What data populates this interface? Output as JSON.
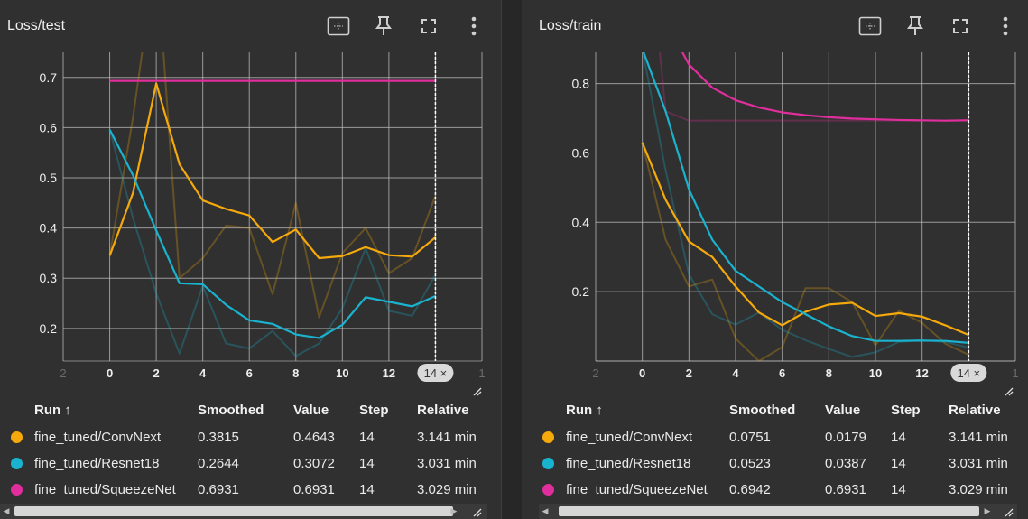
{
  "colors": {
    "convnext": "#f5a90b",
    "resnet18": "#1ab3cf",
    "squeezenet": "#e02e9c",
    "grid": "#bdbdbd",
    "axis_text": "#f0f0f0"
  },
  "table_headers": {
    "run": "Run ↑",
    "smoothed": "Smoothed",
    "value": "Value",
    "step": "Step",
    "relative": "Relative"
  },
  "toolbar_icons": [
    "fit-domain-icon",
    "pin-icon",
    "fullscreen-icon",
    "more-vert-icon"
  ],
  "chart_data": [
    {
      "type": "line",
      "title": "Loss/test",
      "xlim": [
        -2,
        16
      ],
      "ylim": [
        0.135,
        0.75
      ],
      "x_ticks": [
        "2",
        "0",
        "2",
        "4",
        "6",
        "8",
        "10",
        "12",
        "14 ×",
        "1"
      ],
      "y_ticks": [
        0.2,
        0.3,
        0.4,
        0.5,
        0.6,
        0.7
      ],
      "y_tick_labels": [
        "0.2",
        "0.3",
        "0.4",
        "0.5",
        "0.6",
        "0.7"
      ],
      "hover_step": 14,
      "hover_label": "14 ×",
      "grid": true,
      "series": [
        {
          "name": "fine_tuned/ConvNext",
          "x": [
            0,
            1,
            2,
            3,
            4,
            5,
            6,
            7,
            8,
            9,
            10,
            11,
            12,
            13,
            14
          ],
          "smoothed": [
            0.345,
            0.47,
            0.688,
            0.527,
            0.455,
            0.438,
            0.425,
            0.372,
            0.397,
            0.34,
            0.344,
            0.362,
            0.346,
            0.343,
            0.3815
          ],
          "raw": [
            0.345,
            0.62,
            0.95,
            0.3,
            0.34,
            0.405,
            0.4,
            0.268,
            0.45,
            0.222,
            0.35,
            0.4,
            0.31,
            0.34,
            0.4643
          ],
          "smoothed_value": "0.3815",
          "value": "0.4643",
          "step": "14",
          "relative": "3.141 min"
        },
        {
          "name": "fine_tuned/Resnet18",
          "x": [
            0,
            1,
            2,
            3,
            4,
            5,
            6,
            7,
            8,
            9,
            10,
            11,
            12,
            13,
            14
          ],
          "smoothed": [
            0.596,
            0.505,
            0.395,
            0.29,
            0.288,
            0.247,
            0.216,
            0.209,
            0.188,
            0.181,
            0.207,
            0.262,
            0.253,
            0.244,
            0.2644
          ],
          "raw": [
            0.596,
            0.42,
            0.27,
            0.15,
            0.285,
            0.17,
            0.16,
            0.195,
            0.145,
            0.17,
            0.24,
            0.36,
            0.235,
            0.225,
            0.3072
          ],
          "smoothed_value": "0.2644",
          "value": "0.3072",
          "step": "14",
          "relative": "3.031 min"
        },
        {
          "name": "fine_tuned/SqueezeNet",
          "x": [
            0,
            1,
            2,
            3,
            4,
            5,
            6,
            7,
            8,
            9,
            10,
            11,
            12,
            13,
            14
          ],
          "smoothed": [
            0.6931,
            0.6931,
            0.6931,
            0.6931,
            0.6931,
            0.6931,
            0.6931,
            0.6931,
            0.6931,
            0.6931,
            0.6931,
            0.6931,
            0.6931,
            0.6931,
            0.6931
          ],
          "raw": [
            0.6931,
            0.6931,
            0.6931,
            0.6931,
            0.6931,
            0.6931,
            0.6931,
            0.6931,
            0.6931,
            0.6931,
            0.6931,
            0.6931,
            0.6931,
            0.6931,
            0.6931
          ],
          "smoothed_value": "0.6931",
          "value": "0.6931",
          "step": "14",
          "relative": "3.029 min"
        }
      ]
    },
    {
      "type": "line",
      "title": "Loss/train",
      "xlim": [
        -2,
        16
      ],
      "ylim": [
        0,
        0.89
      ],
      "x_ticks": [
        "2",
        "0",
        "2",
        "4",
        "6",
        "8",
        "10",
        "12",
        "14 ×",
        "1"
      ],
      "y_ticks": [
        0,
        0.2,
        0.4,
        0.6,
        0.8
      ],
      "y_tick_labels": [
        "",
        "0.2",
        "0.4",
        "0.6",
        "0.8"
      ],
      "hover_step": 14,
      "hover_label": "14 ×",
      "grid": true,
      "series": [
        {
          "name": "fine_tuned/ConvNext",
          "x": [
            0,
            1,
            2,
            3,
            4,
            5,
            6,
            7,
            8,
            9,
            10,
            11,
            12,
            13,
            14
          ],
          "smoothed": [
            0.63,
            0.465,
            0.345,
            0.3,
            0.215,
            0.14,
            0.103,
            0.142,
            0.163,
            0.168,
            0.13,
            0.138,
            0.128,
            0.103,
            0.0751
          ],
          "raw": [
            0.63,
            0.35,
            0.215,
            0.235,
            0.065,
            0.0,
            0.04,
            0.21,
            0.21,
            0.17,
            0.045,
            0.145,
            0.11,
            0.05,
            0.0179
          ],
          "smoothed_value": "0.0751",
          "value": "0.0179",
          "step": "14",
          "relative": "3.141 min"
        },
        {
          "name": "fine_tuned/Resnet18",
          "x": [
            0,
            1,
            2,
            3,
            4,
            5,
            6,
            7,
            8,
            9,
            10,
            11,
            12,
            13,
            14
          ],
          "smoothed": [
            0.9,
            0.72,
            0.495,
            0.35,
            0.26,
            0.215,
            0.17,
            0.135,
            0.1,
            0.072,
            0.058,
            0.058,
            0.059,
            0.058,
            0.0523
          ],
          "raw": [
            0.9,
            0.55,
            0.25,
            0.135,
            0.105,
            0.14,
            0.09,
            0.06,
            0.035,
            0.012,
            0.025,
            0.055,
            0.06,
            0.055,
            0.0387
          ],
          "smoothed_value": "0.0523",
          "value": "0.0387",
          "step": "14",
          "relative": "3.031 min"
        },
        {
          "name": "fine_tuned/SqueezeNet",
          "x": [
            0,
            1,
            2,
            3,
            4,
            5,
            6,
            7,
            8,
            9,
            10,
            11,
            12,
            13,
            14
          ],
          "smoothed": [
            1.1,
            0.98,
            0.855,
            0.788,
            0.752,
            0.731,
            0.717,
            0.709,
            0.703,
            0.699,
            0.697,
            0.695,
            0.694,
            0.693,
            0.6942
          ],
          "raw": [
            1.4,
            0.72,
            0.693,
            0.6931,
            0.6931,
            0.6931,
            0.6931,
            0.6931,
            0.6931,
            0.6931,
            0.6931,
            0.6931,
            0.6931,
            0.6931,
            0.6931
          ],
          "smoothed_value": "0.6942",
          "value": "0.6931",
          "step": "14",
          "relative": "3.029 min"
        }
      ]
    }
  ]
}
